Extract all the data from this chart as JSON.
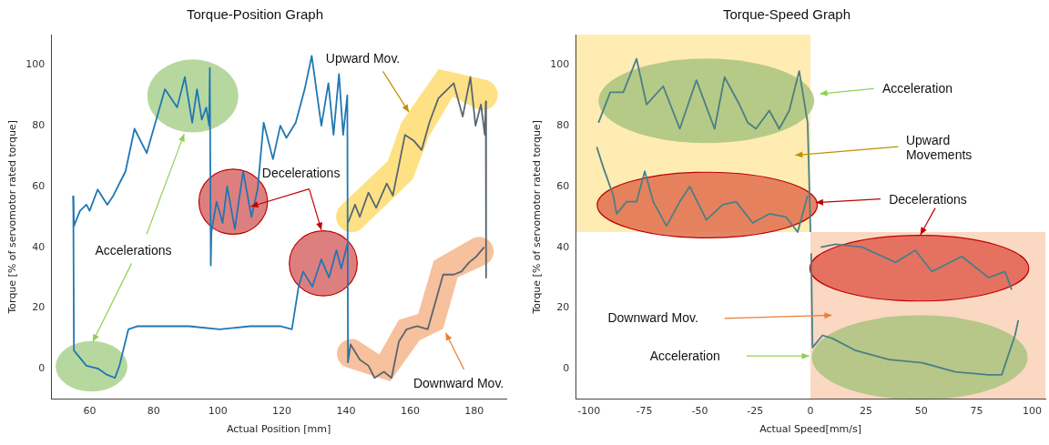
{
  "chart_data": [
    {
      "type": "line",
      "title": "Torque-Position Graph",
      "xlabel": "Actual Position [mm]",
      "ylabel": "Torque [% of servomotor rated torque]",
      "xlim": [
        48,
        190
      ],
      "xticks": [
        60,
        80,
        100,
        120,
        140,
        160,
        180
      ],
      "ylim": [
        -10,
        110
      ],
      "yticks": [
        0,
        20,
        40,
        60,
        80,
        100
      ],
      "annotations": [
        "Upward Mov.",
        {
          "text": "Decelerations",
          "x": 110.3,
          "y": 53.4
        },
        "Accelerations",
        "Downward Mov."
      ],
      "series": [
        {
          "color": "#1f77b4",
          "x": [
            54.9,
            55.1,
            57,
            59,
            60,
            62.5,
            65.5,
            67.4,
            71.2,
            74,
            77.8,
            83.5,
            87.3,
            89.7,
            92,
            93.5,
            95,
            96.4,
            97.3,
            97.5,
            97.8,
            98,
            99.6,
            101.5,
            102.9,
            105.3,
            107.9,
            110.5,
            112.4,
            114.3,
            117.2,
            119.5,
            121.4,
            124.3,
            127.1,
            129.3,
            132.3,
            134.5,
            136.1,
            137.8,
            139.1,
            140.4,
            140.6
          ],
          "values": [
            57,
            47,
            52,
            54,
            52,
            59,
            54,
            57,
            65,
            79,
            71,
            92,
            86,
            96,
            81,
            92,
            82,
            86,
            80,
            99,
            34,
            45,
            55,
            48,
            60,
            46,
            65,
            50,
            59,
            81,
            69,
            80,
            76,
            81,
            92,
            103,
            80,
            94,
            77,
            97,
            77,
            90,
            2
          ]
        },
        {
          "color": "#1f77b4",
          "x": [
            54.9,
            55.1,
            59,
            62.7,
            65.5,
            67.9,
            69.3,
            72.1,
            75,
            81.6,
            91,
            100.6,
            110,
            119.5,
            123.1,
            125.2,
            126.6,
            129.5,
            132.3,
            134.7,
            137,
            138.5,
            140.4
          ],
          "values": [
            57,
            6,
            1,
            0,
            -2,
            -3,
            1,
            13,
            14,
            14,
            14,
            13,
            14,
            14,
            13,
            27,
            32,
            27,
            36,
            30,
            39,
            33,
            41
          ]
        },
        {
          "color": "#5a6670",
          "x": [
            140.6,
            141.4,
            144.3,
            147,
            148.9,
            151.8,
            154.2,
            156.5,
            158.9,
            162.2,
            165.5,
            167.9,
            170.3,
            173.6,
            176,
            178.4,
            180.7,
            183.1
          ],
          "values": [
            2,
            8,
            3,
            1,
            -3,
            -1,
            -3,
            9,
            13,
            14,
            13,
            22,
            31,
            31,
            32,
            35,
            37,
            40
          ]
        },
        {
          "color": "#5a6670",
          "x": [
            140.6,
            142.8,
            144.3,
            147,
            149.4,
            152.7,
            154.6,
            158.4,
            161.2,
            163.6,
            166,
            168.8,
            173.6,
            176.4,
            178.8,
            180.4,
            182.1,
            183.3,
            183.6,
            183.7
          ],
          "values": [
            48,
            54,
            50,
            58,
            53,
            61,
            57,
            77,
            75,
            72,
            81,
            89,
            94,
            83,
            96,
            80,
            87,
            77,
            88,
            30
          ]
        }
      ]
    },
    {
      "type": "line",
      "title": "Torque-Speed Graph",
      "xlabel": "Actual Speed[mm/s]",
      "ylabel": "Torque [% of servomotor rated torque]",
      "xlim": [
        -106,
        106
      ],
      "xticks": [
        -100,
        -75,
        -50,
        -25,
        0,
        25,
        50,
        75,
        100
      ],
      "ylim": [
        -10,
        110
      ],
      "yticks": [
        0,
        20,
        40,
        60,
        80,
        100
      ],
      "annotations": [
        "Acceleration",
        "Upward Movements",
        "Decelerations",
        "Downward Mov.",
        "Acceleration"
      ],
      "series": [
        {
          "color": "#4a7f86",
          "x": [
            -95.7,
            -90.4,
            -84.5,
            -78.5,
            -74,
            -66.5,
            -59,
            -51.5,
            -43.3,
            -38.8,
            -32.1,
            -28.3,
            -24.6,
            -18.6,
            -14.1,
            -9.6,
            -5.1,
            -1.3,
            0
          ],
          "values": [
            81,
            91,
            91,
            102,
            87,
            93,
            79,
            95,
            79,
            96,
            87,
            81,
            79,
            85,
            79,
            85,
            98,
            81,
            45
          ]
        },
        {
          "color": "#4a7f86",
          "x": [
            -96.5,
            -93.4,
            -89,
            -87.5,
            -83,
            -78.5,
            -74.8,
            -71,
            -65,
            -59,
            -54.5,
            -47,
            -39.6,
            -33.6,
            -26.1,
            -18.6,
            -11.1,
            -5.8,
            -1.3
          ],
          "values": [
            73,
            66,
            57,
            51,
            55,
            55,
            65,
            55,
            47,
            55,
            60,
            49,
            54,
            55,
            48,
            51,
            50,
            45,
            57
          ]
        },
        {
          "color": "#4a7f86",
          "x": [
            0.3,
            0.9,
            5.4,
            9.9,
            20.4,
            35.4,
            50.3,
            65.3,
            80.3,
            86.3,
            92.3,
            93.8
          ],
          "values": [
            38,
            7,
            11,
            10,
            6,
            3,
            2,
            -1,
            -2,
            -2,
            11,
            16
          ]
        },
        {
          "color": "#4a7f86",
          "x": [
            4.6,
            11.4,
            23.4,
            38.4,
            47.3,
            54.8,
            68.3,
            80.3,
            87.8,
            90.8
          ],
          "values": [
            40,
            41,
            40,
            35,
            39,
            32,
            37,
            30,
            32,
            26
          ]
        }
      ]
    }
  ]
}
